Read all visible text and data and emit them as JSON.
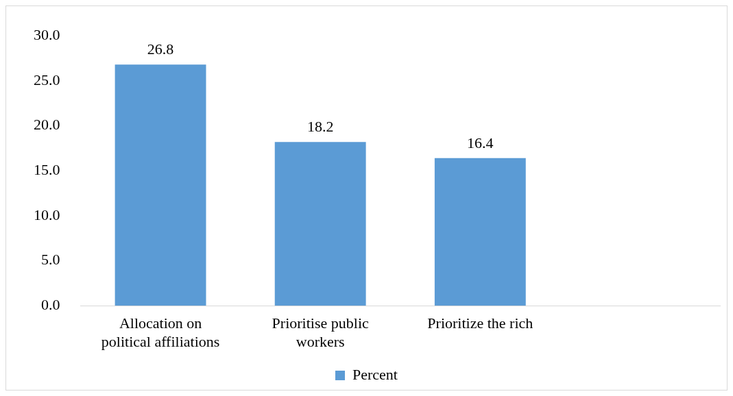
{
  "chart_data": {
    "type": "bar",
    "categories": [
      "Allocation on political affiliations",
      "Prioritise public workers",
      "Prioritize the rich",
      null
    ],
    "series": [
      {
        "name": "Percent",
        "color": "#5b9bd5",
        "values": [
          26.8,
          18.2,
          16.4,
          null
        ]
      }
    ],
    "ylim": [
      0,
      30
    ],
    "yticks": [
      {
        "value": 0,
        "label": "0.0"
      },
      {
        "value": 5,
        "label": "5.0"
      },
      {
        "value": 10,
        "label": "10.0"
      },
      {
        "value": 15,
        "label": "15.0"
      },
      {
        "value": 20,
        "label": "20.0"
      },
      {
        "value": 25,
        "label": "25.0"
      },
      {
        "value": 30,
        "label": "30.0"
      }
    ],
    "grid": false,
    "legend": "bottom",
    "data_labels": true
  }
}
